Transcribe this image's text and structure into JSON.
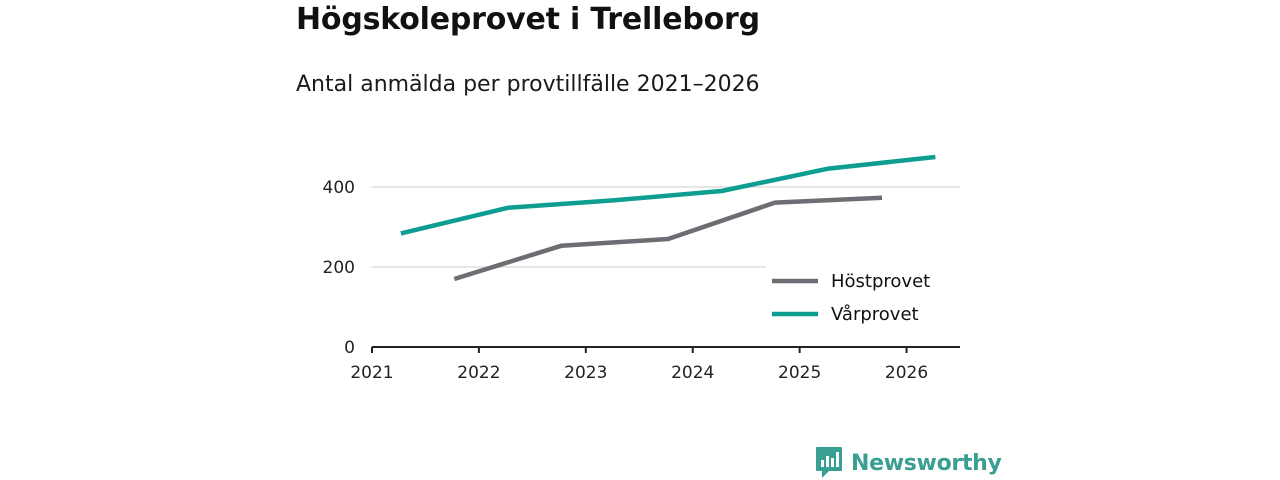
{
  "header": {
    "title": "Högskoleprovet i Trelleborg",
    "subtitle": "Antal anmälda per provtillfälle 2021–2026"
  },
  "chart_data": {
    "type": "line",
    "title": "Högskoleprovet i Trelleborg",
    "subtitle": "Antal anmälda per provtillfälle 2021–2026",
    "xlabel": "",
    "ylabel": "",
    "xlim": [
      2021,
      2026.5
    ],
    "ylim": [
      0,
      500
    ],
    "x_ticks": [
      "2021",
      "2022",
      "2023",
      "2024",
      "2025",
      "2026"
    ],
    "y_ticks": [
      "0",
      "200",
      "400"
    ],
    "grid": "horizontal",
    "legend_position": "bottom-right",
    "series": [
      {
        "name": "Höstprovet",
        "color": "#6d6d73",
        "x": [
          2021.77,
          2022.77,
          2023.77,
          2024.77,
          2025.77
        ],
        "values": [
          170,
          253,
          270,
          361,
          373
        ]
      },
      {
        "name": "Vårprovet",
        "color": "#0e9e91",
        "x": [
          2021.27,
          2022.27,
          2023.27,
          2024.27,
          2025.27,
          2026.27
        ],
        "values": [
          284,
          348,
          367,
          390,
          446,
          475
        ]
      }
    ]
  },
  "brand": {
    "name": "Newsworthy",
    "color": "#3a9f93",
    "icon": "newsworthy-logo-icon"
  }
}
